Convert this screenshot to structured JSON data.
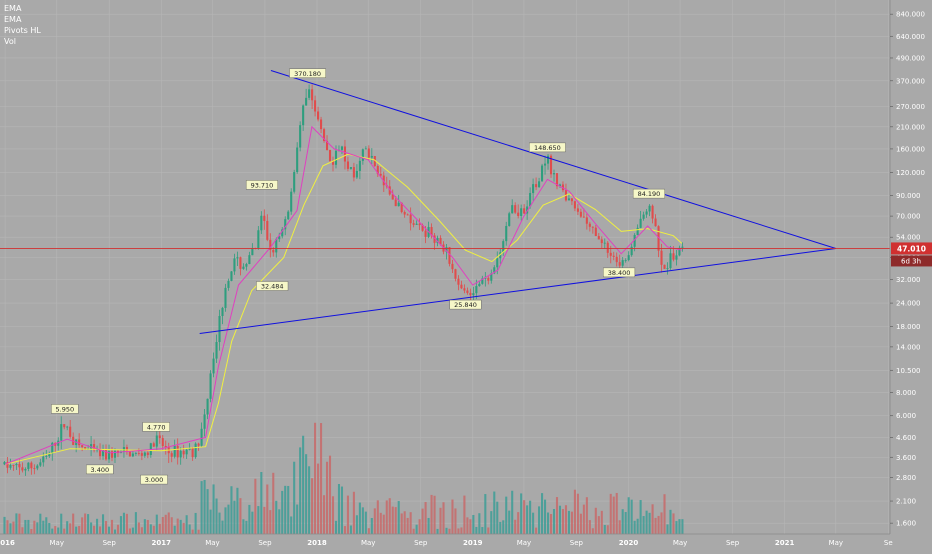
{
  "legend": {
    "items": [
      "EMA",
      "EMA",
      "Pivots HL",
      "Vol"
    ]
  },
  "colors": {
    "background": "#a9a9a9",
    "up": "#2e9e7e",
    "down": "#e04c4c",
    "ema_fast": "#e040c0",
    "ema_slow": "#f0f040",
    "trendline": "#1010e0",
    "price_line": "#d03030",
    "volume_up": "#3d9e96",
    "volume_down": "#c86a6a",
    "pivot_box": "#f6f7c8"
  },
  "price_tag": {
    "value": "47.010",
    "countdown": "6d 3h"
  },
  "chart_data": {
    "type": "candlestick",
    "y_scale": "log",
    "ylim": [
      1.4,
      1000
    ],
    "x_range": [
      "2015-12-20",
      "2021-09-05"
    ],
    "y_ticks": [
      "1.600",
      "2.100",
      "2.800",
      "3.600",
      "4.600",
      "6.000",
      "8.000",
      "10.500",
      "14.000",
      "18.000",
      "24.000",
      "32.000",
      "42.000",
      "54.000",
      "70.000",
      "90.000",
      "120.000",
      "160.000",
      "210.000",
      "270.000",
      "370.000",
      "490.000",
      "640.000",
      "840.000"
    ],
    "x_ticks": [
      {
        "label": "2016",
        "date": "2016-01-01"
      },
      {
        "label": "May",
        "date": "2016-05-01"
      },
      {
        "label": "Sep",
        "date": "2016-09-01"
      },
      {
        "label": "2017",
        "date": "2017-01-01"
      },
      {
        "label": "May",
        "date": "2017-05-01"
      },
      {
        "label": "Sep",
        "date": "2017-09-01"
      },
      {
        "label": "2018",
        "date": "2018-01-01"
      },
      {
        "label": "May",
        "date": "2018-05-01"
      },
      {
        "label": "Sep",
        "date": "2018-09-01"
      },
      {
        "label": "2019",
        "date": "2019-01-01"
      },
      {
        "label": "May",
        "date": "2019-05-01"
      },
      {
        "label": "Sep",
        "date": "2019-09-01"
      },
      {
        "label": "2020",
        "date": "2020-01-01"
      },
      {
        "label": "May",
        "date": "2020-05-01"
      },
      {
        "label": "Sep",
        "date": "2020-09-01"
      },
      {
        "label": "2021",
        "date": "2021-01-01"
      },
      {
        "label": "May",
        "date": "2021-05-01"
      },
      {
        "label": "Se",
        "date": "2021-09-01"
      }
    ],
    "price_path": [
      [
        "2015-12-27",
        3.3
      ],
      [
        "2016-02-01",
        3.1
      ],
      [
        "2016-03-10",
        3.2
      ],
      [
        "2016-04-10",
        3.6
      ],
      [
        "2016-05-01",
        4.5
      ],
      [
        "2016-05-20",
        5.5
      ],
      [
        "2016-06-15",
        4.2
      ],
      [
        "2016-07-15",
        3.9
      ],
      [
        "2016-08-20",
        3.7
      ],
      [
        "2016-10-01",
        3.8
      ],
      [
        "2016-11-10",
        3.7
      ],
      [
        "2016-12-05",
        3.9
      ],
      [
        "2016-12-20",
        4.5
      ],
      [
        "2017-01-20",
        3.8
      ],
      [
        "2017-02-25",
        3.9
      ],
      [
        "2017-03-25",
        4.0
      ],
      [
        "2017-04-10",
        5.5
      ],
      [
        "2017-04-20",
        8.0
      ],
      [
        "2017-04-30",
        12.0
      ],
      [
        "2017-05-15",
        18.0
      ],
      [
        "2017-06-01",
        30.0
      ],
      [
        "2017-06-20",
        40.0
      ],
      [
        "2017-07-15",
        38.0
      ],
      [
        "2017-08-10",
        48.0
      ],
      [
        "2017-08-25",
        70.0
      ],
      [
        "2017-09-15",
        45.0
      ],
      [
        "2017-10-10",
        55.0
      ],
      [
        "2017-11-01",
        90.0
      ],
      [
        "2017-11-20",
        210.0
      ],
      [
        "2017-12-10",
        340.0
      ],
      [
        "2017-12-25",
        260.0
      ],
      [
        "2018-01-10",
        200.0
      ],
      [
        "2018-01-25",
        150.0
      ],
      [
        "2018-02-10",
        130.0
      ],
      [
        "2018-02-25",
        180.0
      ],
      [
        "2018-03-15",
        130.0
      ],
      [
        "2018-04-01",
        110.0
      ],
      [
        "2018-04-20",
        170.0
      ],
      [
        "2018-05-10",
        140.0
      ],
      [
        "2018-06-01",
        110.0
      ],
      [
        "2018-07-01",
        80.0
      ],
      [
        "2018-08-01",
        70.0
      ],
      [
        "2018-09-01",
        60.0
      ],
      [
        "2018-10-01",
        55.0
      ],
      [
        "2018-11-01",
        45.0
      ],
      [
        "2018-11-25",
        30.0
      ],
      [
        "2018-12-15",
        27.0
      ],
      [
        "2019-01-10",
        30.0
      ],
      [
        "2019-02-10",
        32.0
      ],
      [
        "2019-03-10",
        45.0
      ],
      [
        "2019-04-01",
        80.0
      ],
      [
        "2019-04-20",
        70.0
      ],
      [
        "2019-05-15",
        90.0
      ],
      [
        "2019-06-01",
        110.0
      ],
      [
        "2019-06-25",
        140.0
      ],
      [
        "2019-07-20",
        100.0
      ],
      [
        "2019-08-20",
        85.0
      ],
      [
        "2019-09-15",
        70.0
      ],
      [
        "2019-10-15",
        55.0
      ],
      [
        "2019-11-15",
        45.0
      ],
      [
        "2019-12-10",
        40.0
      ],
      [
        "2020-01-10",
        45.0
      ],
      [
        "2020-02-01",
        70.0
      ],
      [
        "2020-02-20",
        80.0
      ],
      [
        "2020-03-05",
        60.0
      ],
      [
        "2020-03-15",
        35.0
      ],
      [
        "2020-04-01",
        38.0
      ],
      [
        "2020-04-20",
        44.0
      ],
      [
        "2020-05-05",
        47.0
      ]
    ],
    "ema_fast": [
      [
        "2016-01-01",
        3.3
      ],
      [
        "2016-05-25",
        4.5
      ],
      [
        "2016-09-01",
        3.8
      ],
      [
        "2017-01-01",
        4.0
      ],
      [
        "2017-04-15",
        4.6
      ],
      [
        "2017-05-15",
        11.0
      ],
      [
        "2017-07-01",
        30.0
      ],
      [
        "2017-09-15",
        48.0
      ],
      [
        "2017-11-15",
        75.0
      ],
      [
        "2017-12-20",
        210.0
      ],
      [
        "2018-02-10",
        160.0
      ],
      [
        "2018-05-01",
        140.0
      ],
      [
        "2018-07-01",
        90.0
      ],
      [
        "2018-09-01",
        64.0
      ],
      [
        "2018-11-15",
        42.0
      ],
      [
        "2019-01-01",
        30.0
      ],
      [
        "2019-03-01",
        36.0
      ],
      [
        "2019-05-01",
        70.0
      ],
      [
        "2019-06-25",
        110.0
      ],
      [
        "2019-08-15",
        95.0
      ],
      [
        "2019-10-15",
        64.0
      ],
      [
        "2019-12-15",
        44.0
      ],
      [
        "2020-02-15",
        62.0
      ],
      [
        "2020-04-01",
        48.0
      ],
      [
        "2020-05-05",
        46.0
      ]
    ],
    "ema_slow": [
      [
        "2016-01-01",
        3.3
      ],
      [
        "2016-06-01",
        4.0
      ],
      [
        "2017-01-01",
        3.9
      ],
      [
        "2017-04-15",
        4.1
      ],
      [
        "2017-05-15",
        7.0
      ],
      [
        "2017-06-15",
        15.0
      ],
      [
        "2017-08-01",
        28.0
      ],
      [
        "2017-10-15",
        42.0
      ],
      [
        "2017-12-01",
        80.0
      ],
      [
        "2018-01-15",
        130.0
      ],
      [
        "2018-03-15",
        150.0
      ],
      [
        "2018-05-15",
        140.0
      ],
      [
        "2018-08-01",
        100.0
      ],
      [
        "2018-10-15",
        66.0
      ],
      [
        "2018-12-15",
        46.0
      ],
      [
        "2019-02-15",
        40.0
      ],
      [
        "2019-04-15",
        52.0
      ],
      [
        "2019-06-15",
        80.0
      ],
      [
        "2019-08-15",
        92.0
      ],
      [
        "2019-10-15",
        76.0
      ],
      [
        "2019-12-15",
        58.0
      ],
      [
        "2020-02-15",
        60.0
      ],
      [
        "2020-04-15",
        55.0
      ],
      [
        "2020-05-05",
        50.0
      ]
    ],
    "trendlines": [
      {
        "from": [
          "2017-04-01",
          16.5
        ],
        "to": [
          "2021-05-01",
          47.0
        ]
      },
      {
        "from": [
          "2017-09-15",
          420.0
        ],
        "to": [
          "2021-05-01",
          47.0
        ]
      }
    ],
    "price_line": 47.01,
    "pivots": [
      {
        "label": "5.950",
        "date": "2016-05-20",
        "value": 5.95,
        "pos": "above"
      },
      {
        "label": "3.400",
        "date": "2016-08-10",
        "value": 3.4,
        "pos": "below"
      },
      {
        "label": "4.770",
        "date": "2016-12-20",
        "value": 4.77,
        "pos": "above"
      },
      {
        "label": "3.000",
        "date": "2016-12-15",
        "value": 3.0,
        "pos": "below"
      },
      {
        "label": "93.710",
        "date": "2017-08-25",
        "value": 93.71,
        "pos": "above"
      },
      {
        "label": "32.484",
        "date": "2017-09-18",
        "value": 32.484,
        "pos": "below"
      },
      {
        "label": "370.180",
        "date": "2017-12-10",
        "value": 370.18,
        "pos": "above"
      },
      {
        "label": "25.840",
        "date": "2018-12-15",
        "value": 25.84,
        "pos": "below"
      },
      {
        "label": "148.650",
        "date": "2019-06-25",
        "value": 148.65,
        "pos": "above"
      },
      {
        "label": "38.400",
        "date": "2019-12-10",
        "value": 38.4,
        "pos": "below"
      },
      {
        "label": "84.190",
        "date": "2020-02-18",
        "value": 84.19,
        "pos": "above"
      }
    ]
  }
}
